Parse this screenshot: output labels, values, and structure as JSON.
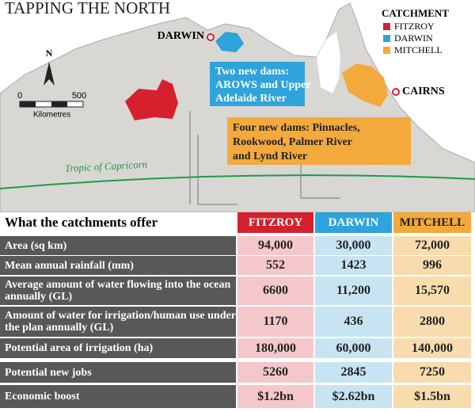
{
  "header": {
    "title": "TAPPING THE NORTH"
  },
  "legend": {
    "title": "CATCHMENT",
    "items": [
      "FITZROY",
      "DARWIN",
      "MITCHELL"
    ]
  },
  "map": {
    "cities": [
      "DARWIN",
      "CAIRNS"
    ],
    "callouts": [
      [
        "Two new dams:",
        "AROWS and Upper",
        "Adelaide River"
      ],
      [
        "Four new dams: Pinnacles,",
        "Rookwood, Palmer River",
        "and Lynd River"
      ]
    ],
    "tropic": "Tropic of Capricorn",
    "north": "N",
    "scale": [
      "0",
      "500",
      "Kilometres"
    ]
  },
  "table": {
    "title": "What the catchments offer",
    "columns": [
      "FITZROY",
      "DARWIN",
      "MITCHELL"
    ],
    "rows": [
      [
        "Area (sq km)",
        "94,000",
        "30,000",
        "72,000"
      ],
      [
        "Mean annual rainfall (mm)",
        "552",
        "1423",
        "996"
      ],
      [
        "Average amount of water flowing into the ocean annually (GL)",
        "6600",
        "11,200",
        "15,570"
      ],
      [
        "Amount of water for irrigation/human use under the plan annually (GL)",
        "1170",
        "436",
        "2800"
      ],
      [
        "Potential area of irrigation (ha)",
        "180,000",
        "60,000",
        "140,000"
      ],
      [
        "Potential new jobs",
        "5260",
        "2845",
        "7250"
      ],
      [
        "Economic boost",
        "$1.2bn",
        "$2.62bn",
        "$1.5bn"
      ]
    ]
  }
}
